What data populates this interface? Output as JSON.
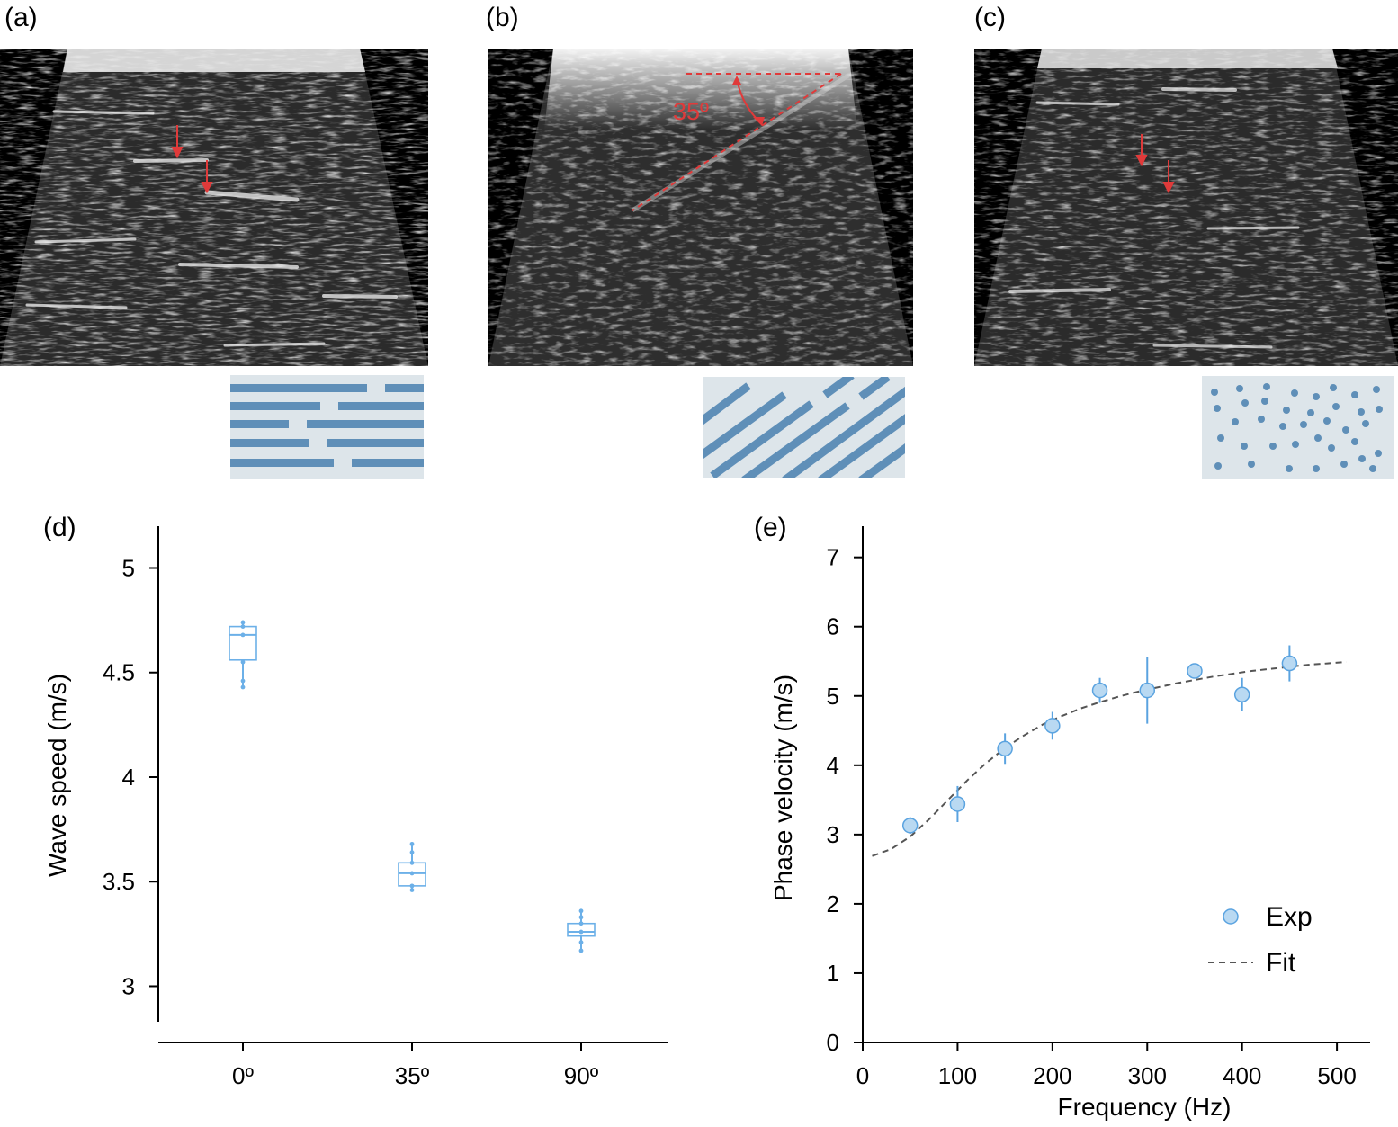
{
  "panels": {
    "a": {
      "label": "(a)",
      "schematic": "horizontal-fibers"
    },
    "b": {
      "label": "(b)",
      "annotation": "35º",
      "schematic": "diagonal-fibers"
    },
    "c": {
      "label": "(c)",
      "schematic": "dots"
    },
    "d": {
      "label": "(d)"
    },
    "e": {
      "label": "(e)"
    }
  },
  "colors": {
    "box": "#6cb0e8",
    "point_fill": "#b9d9f2",
    "point_edge": "#5aa3e0",
    "fit": "#555555",
    "annot": "#e03a3a",
    "schem_bg": "#dde5ea",
    "schem_fg": "#5f8fb8"
  },
  "chart_data": [
    {
      "id": "d",
      "type": "box",
      "ylabel": "Wave speed (m/s)",
      "categories": [
        "0º",
        "35º",
        "90º"
      ],
      "yticks": [
        3,
        3.5,
        4,
        4.5,
        5
      ],
      "ytick_labels": [
        "3",
        "3.5",
        "4",
        "4.5",
        "5"
      ],
      "ylim": [
        2.83,
        5.2
      ],
      "boxes": [
        {
          "min": 4.43,
          "q1": 4.56,
          "median": 4.68,
          "q3": 4.72,
          "max": 4.74,
          "points": [
            4.43,
            4.46,
            4.55,
            4.68,
            4.72,
            4.74
          ]
        },
        {
          "min": 3.46,
          "q1": 3.48,
          "median": 3.54,
          "q3": 3.59,
          "max": 3.68,
          "points": [
            3.46,
            3.48,
            3.54,
            3.59,
            3.64,
            3.68
          ]
        },
        {
          "min": 3.17,
          "q1": 3.24,
          "median": 3.26,
          "q3": 3.3,
          "max": 3.36,
          "points": [
            3.17,
            3.21,
            3.26,
            3.3,
            3.33,
            3.36
          ]
        }
      ]
    },
    {
      "id": "e",
      "type": "scatter",
      "xlabel": "Frequency (Hz)",
      "ylabel": "Phase velocity (m/s)",
      "xlim": [
        0,
        535
      ],
      "ylim": [
        0,
        7.45
      ],
      "xticks": [
        0,
        100,
        200,
        300,
        400,
        500
      ],
      "xtick_labels": [
        "0",
        "100",
        "200",
        "300",
        "400",
        "500"
      ],
      "yticks": [
        0,
        1,
        2,
        3,
        4,
        5,
        6,
        7
      ],
      "ytick_labels": [
        "0",
        "1",
        "2",
        "3",
        "4",
        "5",
        "6",
        "7"
      ],
      "series": [
        {
          "name": "Exp",
          "x": [
            50,
            100,
            150,
            200,
            250,
            300,
            350,
            400,
            450
          ],
          "y": [
            3.13,
            3.44,
            4.24,
            4.57,
            5.08,
            5.08,
            5.36,
            5.02,
            5.47
          ],
          "err": [
            0.12,
            0.26,
            0.22,
            0.2,
            0.18,
            0.48,
            0.1,
            0.24,
            0.26
          ]
        },
        {
          "name": "Fit",
          "x": [
            10,
            30,
            50,
            70,
            90,
            110,
            130,
            150,
            170,
            190,
            210,
            230,
            250,
            270,
            290,
            310,
            330,
            350,
            370,
            390,
            410,
            430,
            450,
            470,
            490,
            510
          ],
          "y": [
            2.69,
            2.79,
            2.97,
            3.22,
            3.5,
            3.78,
            4.03,
            4.25,
            4.43,
            4.59,
            4.71,
            4.82,
            4.91,
            4.99,
            5.06,
            5.12,
            5.18,
            5.23,
            5.28,
            5.32,
            5.36,
            5.39,
            5.42,
            5.45,
            5.47,
            5.49
          ]
        }
      ],
      "legend": {
        "position": "bottom-right",
        "entries": [
          "Exp",
          "Fit"
        ]
      }
    }
  ]
}
